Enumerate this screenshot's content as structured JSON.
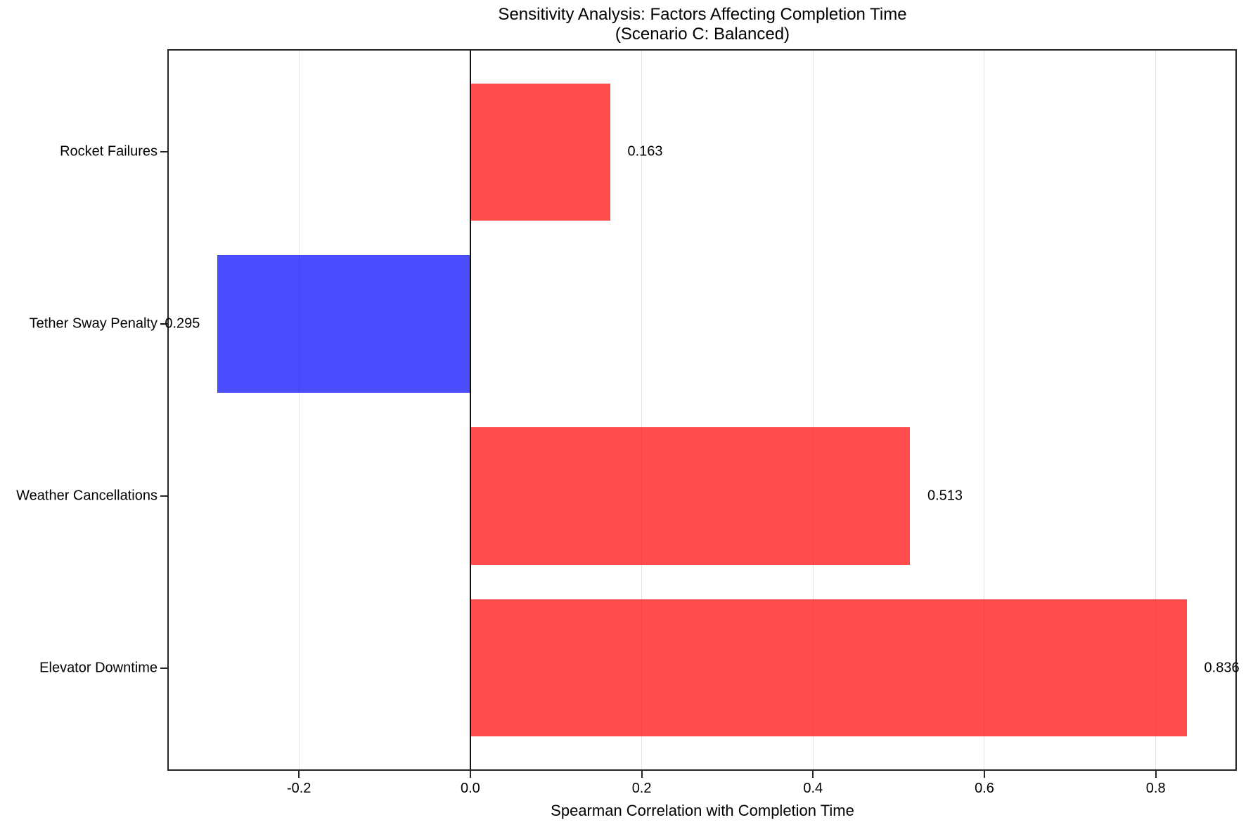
{
  "chart_data": {
    "type": "bar",
    "orientation": "horizontal",
    "title": "Sensitivity Analysis: Factors Affecting Completion Time",
    "subtitle": "(Scenario C: Balanced)",
    "xlabel": "Spearman Correlation with Completion Time",
    "categories": [
      "Rocket Failures",
      "Tether Sway Penalty",
      "Weather Cancellations",
      "Elevator Downtime"
    ],
    "values": [
      0.163,
      -0.295,
      0.513,
      0.836
    ],
    "value_labels": [
      "0.163",
      "-0.295",
      "0.513",
      "0.836"
    ],
    "bar_colors": [
      "#ff0000",
      "#0000ff",
      "#ff0000",
      "#ff0000"
    ],
    "bar_alpha": 0.7,
    "positive_color": "#ff4d4d",
    "negative_color": "#4d4dff",
    "xlim": [
      -0.352,
      0.893
    ],
    "xticks": [
      -0.2,
      0.0,
      0.2,
      0.4,
      0.6,
      0.8
    ],
    "xtick_labels": [
      "-0.2",
      "0.0",
      "0.2",
      "0.4",
      "0.6",
      "0.8"
    ],
    "grid": true,
    "zero_line": true,
    "legend_position": "none",
    "grid_color": "#e4e4e4",
    "axis_color": "#262626"
  }
}
